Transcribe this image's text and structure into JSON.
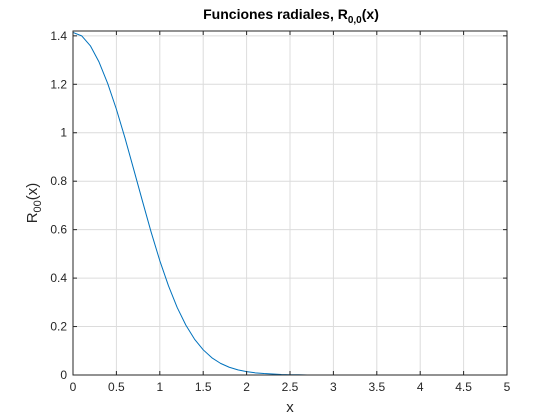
{
  "chart_data": {
    "type": "line",
    "title": {
      "main": "Funciones radiales, R",
      "subscript": "0,0",
      "suffix": "(x)"
    },
    "xlabel": "x",
    "ylabel": {
      "main": "R",
      "subscript": "00",
      "suffix": "(x)"
    },
    "xlim": [
      0,
      5
    ],
    "ylim": [
      0,
      1.42
    ],
    "xticks": [
      0,
      0.5,
      1,
      1.5,
      2,
      2.5,
      3,
      3.5,
      4,
      4.5,
      5
    ],
    "xtick_labels": [
      "0",
      "0.5",
      "1",
      "1.5",
      "2",
      "2.5",
      "3",
      "3.5",
      "4",
      "4.5",
      "5"
    ],
    "yticks": [
      0,
      0.2,
      0.4,
      0.6,
      0.8,
      1,
      1.2,
      1.4
    ],
    "ytick_labels": [
      "0",
      "0.2",
      "0.4",
      "0.6",
      "0.8",
      "1",
      "1.2",
      "1.4"
    ],
    "grid": true,
    "series": [
      {
        "color": "#0072BD",
        "x": [
          0,
          0.1,
          0.2,
          0.3,
          0.4,
          0.5,
          0.6,
          0.7,
          0.8,
          0.9,
          1.0,
          1.1,
          1.2,
          1.3,
          1.4,
          1.5,
          1.6,
          1.7,
          1.8,
          1.9,
          2.0,
          2.1,
          2.2,
          2.3,
          2.4,
          2.5,
          2.6,
          2.7,
          2.8,
          2.9,
          3.0,
          3.2,
          3.4,
          3.6,
          3.8,
          4.0,
          4.5,
          5.0
        ],
        "y": [
          1.414,
          1.4,
          1.359,
          1.292,
          1.203,
          1.097,
          0.977,
          0.848,
          0.718,
          0.59,
          0.472,
          0.368,
          0.279,
          0.206,
          0.148,
          0.104,
          0.071,
          0.048,
          0.032,
          0.021,
          0.014,
          0.009,
          0.006,
          0.004,
          0.002,
          0.001,
          0.001,
          0.0,
          0.0,
          0.0,
          0.0,
          0.0,
          0.0,
          0.0,
          0.0,
          0.0,
          0.0,
          0.0
        ]
      }
    ]
  }
}
